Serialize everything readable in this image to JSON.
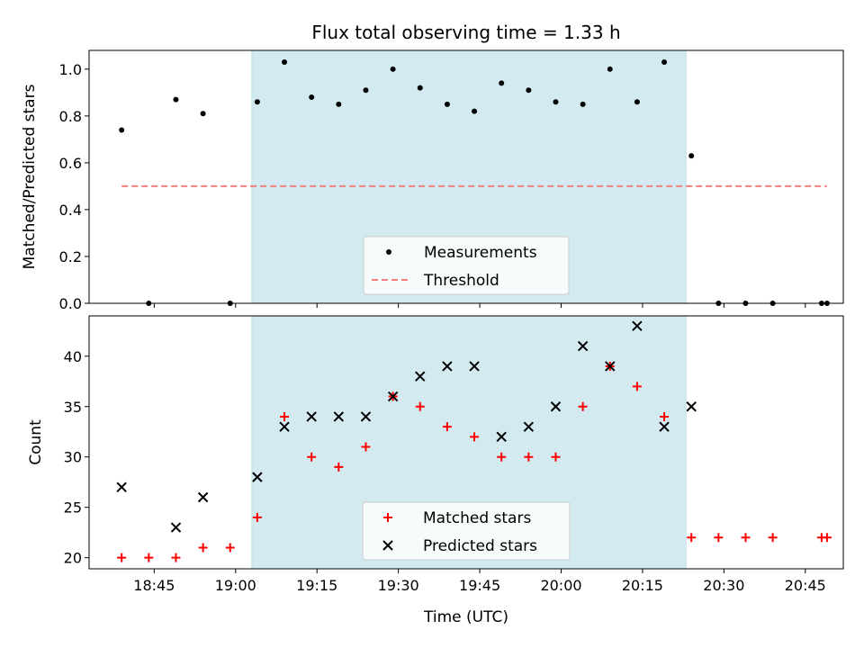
{
  "chart_data": [
    {
      "type": "scatter",
      "title": "Flux total observing time = 1.33 h",
      "xlabel": "",
      "ylabel": "Matched/Predicted stars",
      "ylim": [
        0,
        1.08
      ],
      "yticks": [
        0.0,
        0.2,
        0.4,
        0.6,
        0.8,
        1.0
      ],
      "ytick_labels": [
        "0.0",
        "0.2",
        "0.4",
        "0.6",
        "0.8",
        "1.0"
      ],
      "xlim": [
        "18:33",
        "20:52"
      ],
      "shaded_interval": [
        "19:03",
        "20:23"
      ],
      "shade_color": "#d3eaf0",
      "series": [
        {
          "name": "Measurements",
          "marker": "dot",
          "color": "#000000",
          "x": [
            "18:39",
            "18:44",
            "18:49",
            "18:54",
            "18:59",
            "19:04",
            "19:09",
            "19:14",
            "19:19",
            "19:24",
            "19:29",
            "19:34",
            "19:39",
            "19:44",
            "19:49",
            "19:54",
            "19:59",
            "20:04",
            "20:09",
            "20:14",
            "20:19",
            "20:24",
            "20:29",
            "20:34",
            "20:39",
            "20:48",
            "20:49"
          ],
          "y": [
            0.74,
            0.0,
            0.87,
            0.81,
            0.0,
            0.86,
            1.03,
            0.88,
            0.85,
            0.91,
            1.0,
            0.92,
            0.85,
            0.82,
            0.94,
            0.91,
            0.86,
            0.85,
            1.0,
            0.86,
            1.03,
            0.63,
            0.0,
            0.0,
            0.0,
            0.0,
            0.0
          ]
        },
        {
          "name": "Threshold",
          "style": "dashed",
          "color": "#f08080",
          "x": [
            "18:39",
            "20:49"
          ],
          "y": [
            0.5,
            0.5
          ]
        }
      ],
      "legend": [
        "Measurements",
        "Threshold"
      ],
      "legend_position": "lower-center"
    },
    {
      "type": "scatter",
      "title": "",
      "xlabel": "Time (UTC)",
      "ylabel": "Count",
      "ylim": [
        18.9,
        44
      ],
      "yticks": [
        20,
        25,
        30,
        35,
        40
      ],
      "ytick_labels": [
        "20",
        "25",
        "30",
        "35",
        "40"
      ],
      "xlim": [
        "18:33",
        "20:52"
      ],
      "xticks": [
        "18:45",
        "19:00",
        "19:15",
        "19:30",
        "19:45",
        "20:00",
        "20:15",
        "20:30",
        "20:45"
      ],
      "xtick_labels": [
        "18:45",
        "19:00",
        "19:15",
        "19:30",
        "19:45",
        "20:00",
        "20:15",
        "20:30",
        "20:45"
      ],
      "shaded_interval": [
        "19:03",
        "20:23"
      ],
      "shade_color": "#d3eaf0",
      "series": [
        {
          "name": "Matched stars",
          "marker": "plus",
          "color": "#ff0000",
          "x": [
            "18:39",
            "18:44",
            "18:49",
            "18:54",
            "18:59",
            "19:04",
            "19:09",
            "19:14",
            "19:19",
            "19:24",
            "19:29",
            "19:34",
            "19:39",
            "19:44",
            "19:49",
            "19:54",
            "19:59",
            "20:04",
            "20:09",
            "20:14",
            "20:19",
            "20:24",
            "20:29",
            "20:34",
            "20:39",
            "20:48",
            "20:49"
          ],
          "y": [
            20,
            20,
            20,
            21,
            21,
            24,
            34,
            30,
            29,
            31,
            36,
            35,
            33,
            32,
            30,
            30,
            30,
            35,
            39,
            37,
            34,
            22,
            22,
            22,
            22,
            22,
            22
          ]
        },
        {
          "name": "Predicted stars",
          "marker": "x",
          "color": "#000000",
          "x": [
            "18:39",
            "18:49",
            "18:54",
            "19:04",
            "19:09",
            "19:14",
            "19:19",
            "19:24",
            "19:29",
            "19:34",
            "19:39",
            "19:44",
            "19:49",
            "19:54",
            "19:59",
            "20:04",
            "20:09",
            "20:14",
            "20:19",
            "20:24"
          ],
          "y": [
            27,
            23,
            26,
            28,
            33,
            34,
            34,
            34,
            36,
            38,
            39,
            39,
            32,
            33,
            35,
            41,
            39,
            43,
            33,
            35
          ]
        }
      ],
      "legend": [
        "Matched stars",
        "Predicted stars"
      ],
      "legend_position": "lower-center"
    }
  ]
}
